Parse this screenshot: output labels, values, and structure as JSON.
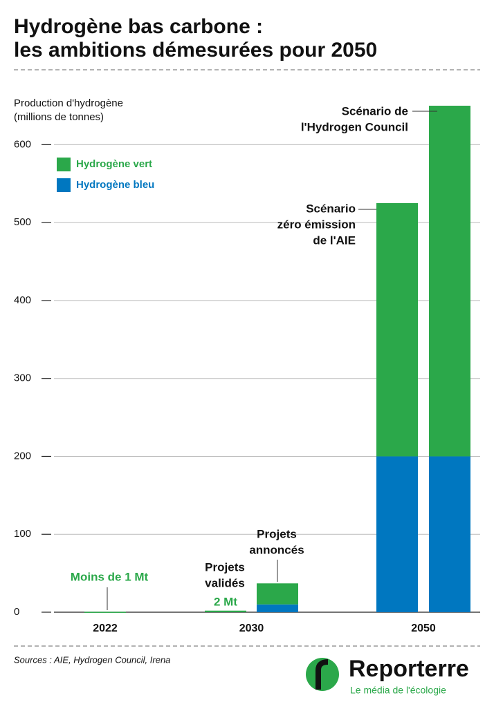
{
  "chart_data": {
    "type": "bar",
    "stacked": true,
    "title": [
      "Hydrogène bas carbone :",
      "les ambitions démesurées pour 2050"
    ],
    "y_label": [
      "Production d'hydrogène",
      "(millions de tonnes)"
    ],
    "categories": [
      "2022",
      "2030",
      null,
      "2050",
      null
    ],
    "series": [
      {
        "name": "Hydrogène bleu",
        "color": "#0077c0",
        "values": [
          0,
          0,
          10,
          200,
          200
        ]
      },
      {
        "name": "Hydrogène vert",
        "color": "#2ba84a",
        "values": [
          0.5,
          2,
          27,
          325,
          450
        ]
      }
    ],
    "ylim": [
      0,
      650
    ],
    "yticks": [
      0,
      100,
      200,
      300,
      400,
      500,
      600
    ],
    "grid": true,
    "annotations": [
      {
        "lines": [
          "Moins de 1 Mt"
        ],
        "color": "#2ba84a"
      },
      {
        "lines": [
          "Projets",
          "validés"
        ],
        "color": "#111"
      },
      {
        "lines": [
          "2 Mt"
        ],
        "color": "#2ba84a"
      },
      {
        "lines": [
          "Projets",
          "annoncés"
        ],
        "color": "#111"
      },
      {
        "lines": [
          "Scénario",
          "zéro émission",
          "de l'AIE"
        ],
        "color": "#111"
      },
      {
        "lines": [
          "Scénario de",
          "l'Hydrogen Council"
        ],
        "color": "#111"
      }
    ],
    "source": "Sources : AIE, Hydrogen Council, Irena",
    "brand": "Reporterre",
    "tagline": "Le média de l'écologie"
  }
}
